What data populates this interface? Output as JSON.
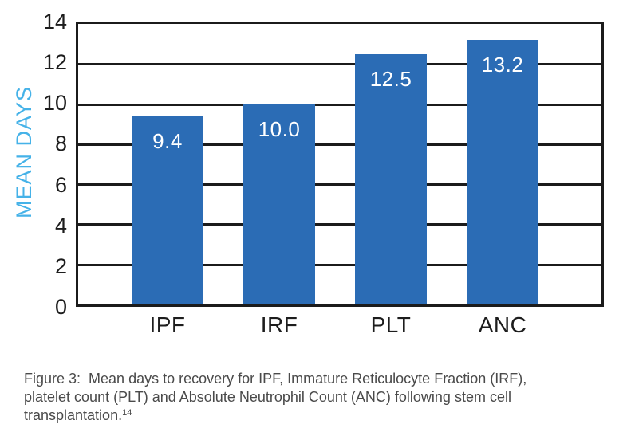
{
  "figure": {
    "caption": {
      "line1": "Figure 3:  Mean days to recovery for IPF, Immature Reticulocyte Fraction (IRF),",
      "line2": "platelet count (PLT) and Absolute Neutrophil Count (ANC) following stem cell",
      "line3": "transplantation.",
      "citation_superscript": "14"
    }
  },
  "chart_data": {
    "type": "bar",
    "categories": [
      "IPF",
      "IRF",
      "PLT",
      "ANC"
    ],
    "values": [
      9.4,
      10.0,
      12.5,
      13.2
    ],
    "value_labels": [
      "9.4",
      "10.0",
      "12.5",
      "13.2"
    ],
    "title": "",
    "xlabel": "",
    "ylabel": "MEAN DAYS",
    "ylim": [
      0,
      14
    ],
    "yticks": [
      0,
      2,
      4,
      6,
      8,
      10,
      12,
      14
    ],
    "grid": true,
    "gridline_step": 2,
    "legend": false,
    "colors": {
      "bar": "#2b6cb5",
      "ylabel_text": "#45b2e8",
      "axis_text": "#1d1d1d",
      "grid_line": "#1b1b1b",
      "value_label": "#ffffff",
      "caption_text": "#4a4a4a"
    }
  }
}
